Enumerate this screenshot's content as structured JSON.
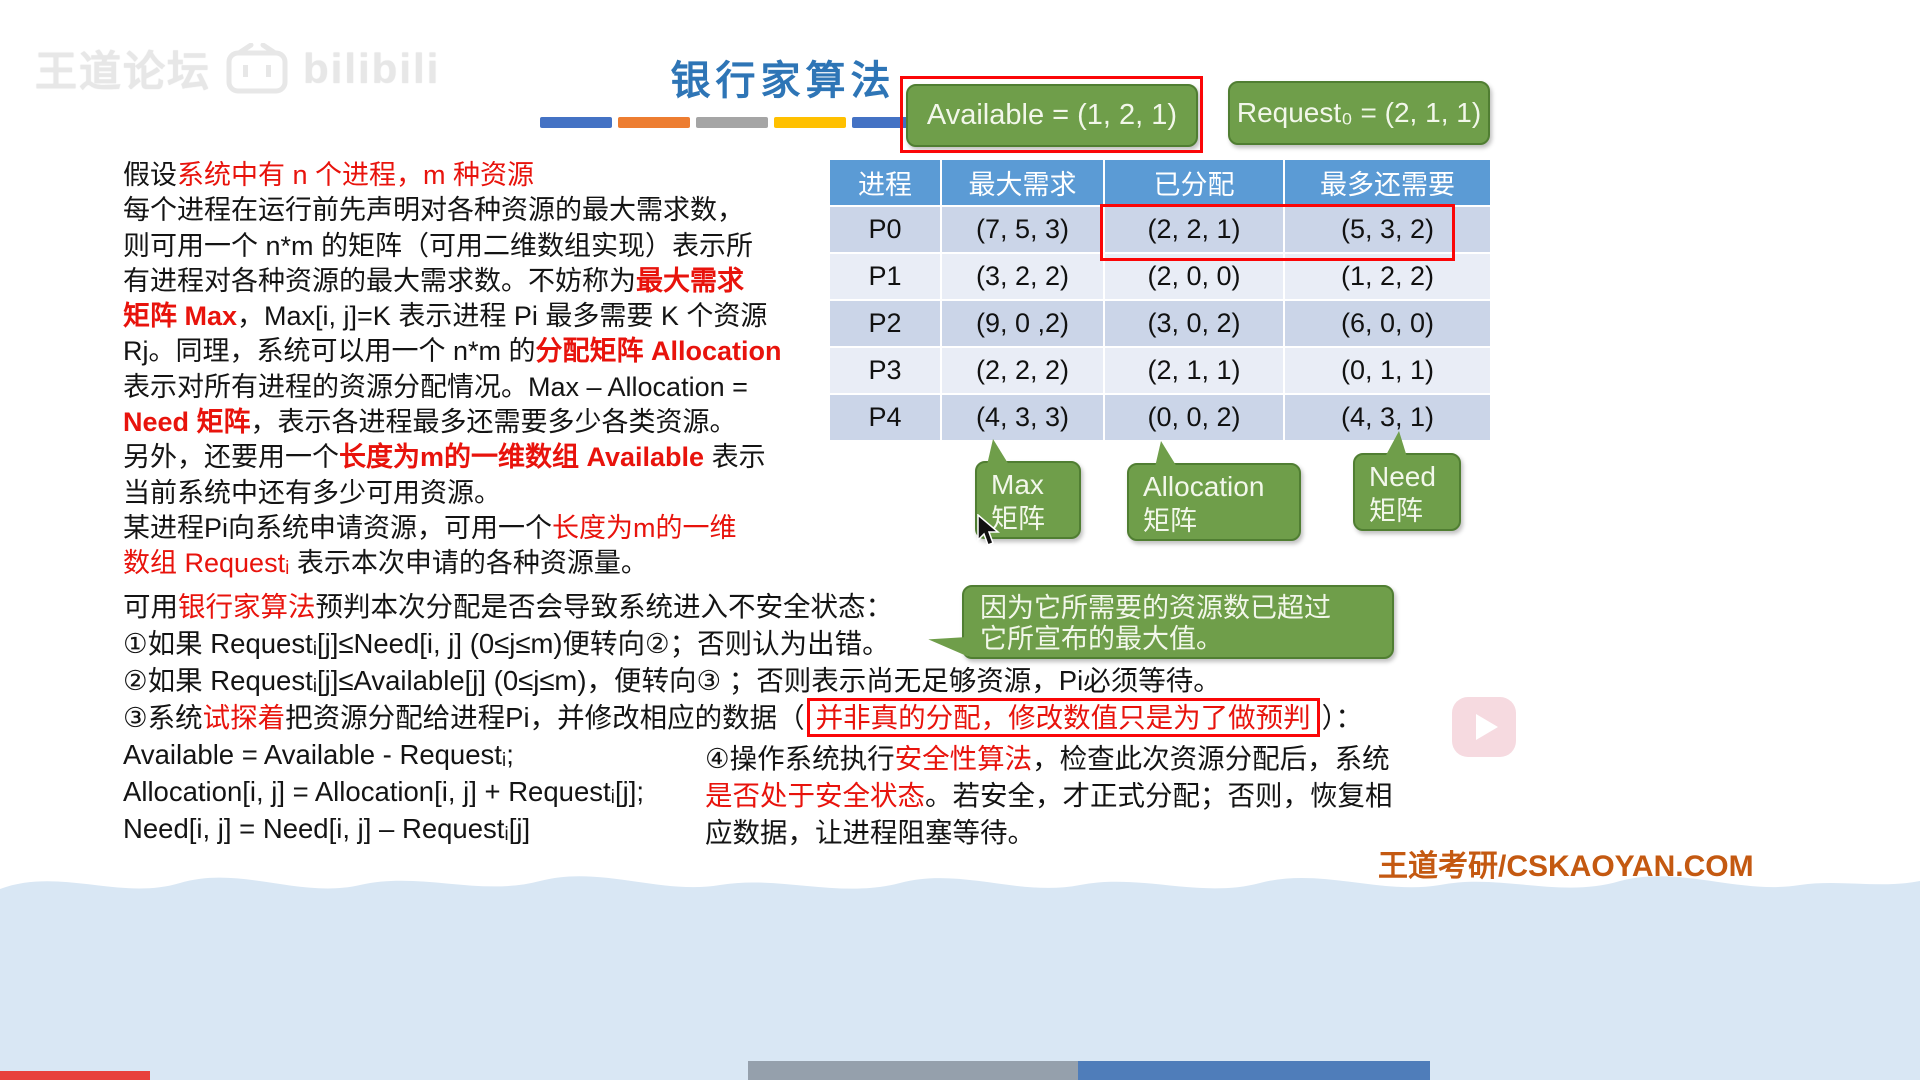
{
  "watermark": {
    "site": "王道论坛",
    "logo": "bilibili"
  },
  "header": {
    "title": "银行家算法"
  },
  "badges": {
    "available": "Available = (1, 2, 1)",
    "request": "Request₀ = (2, 1, 1)"
  },
  "decor": {
    "divider_colors": [
      "#4472C4",
      "#ED7D31",
      "#A5A5A5",
      "#FFC000",
      "#4472C4"
    ]
  },
  "intro": {
    "lines": [
      [
        {
          "t": "假设",
          "s": "k"
        },
        {
          "t": "系统中有 n 个进程，m 种资源",
          "s": "r"
        }
      ],
      [
        {
          "t": "每个进程在运行前先声明对各种资源的最大需求数，",
          "s": "k"
        }
      ],
      [
        {
          "t": "则可用一个 n*m 的矩阵（可用二维数组实现）表示所",
          "s": "k"
        }
      ],
      [
        {
          "t": "有进程对各种资源的最大需求数。不妨称为",
          "s": "k"
        },
        {
          "t": "最大需求",
          "s": "rb"
        }
      ],
      [
        {
          "t": "矩阵 Max",
          "s": "rb"
        },
        {
          "t": "，Max[i, j]=K 表示进程 Pi 最多需要 K 个资源",
          "s": "k"
        }
      ],
      [
        {
          "t": "Rj。同理，系统可以用一个 n*m 的",
          "s": "k"
        },
        {
          "t": "分配矩阵 Allocation",
          "s": "rb"
        }
      ],
      [
        {
          "t": "表示对所有进程的资源分配情况。Max – Allocation =",
          "s": "k"
        }
      ],
      [
        {
          "t": "Need 矩阵",
          "s": "rb"
        },
        {
          "t": "，表示各进程最多还需要多少各类资源。",
          "s": "k"
        }
      ],
      [
        {
          "t": "另外，还要用一个",
          "s": "k"
        },
        {
          "t": "长度为m的一维数组 Available",
          "s": "rb"
        },
        {
          "t": " 表示",
          "s": "k"
        }
      ],
      [
        {
          "t": "当前系统中还有多少可用资源。",
          "s": "k"
        }
      ],
      [
        {
          "t": "某进程Pi向系统申请资源，可用一个",
          "s": "k"
        },
        {
          "t": "长度为m的一维",
          "s": "r"
        }
      ],
      [
        {
          "t": "数组 Requestᵢ",
          "s": "r"
        },
        {
          "t": " 表示本次申请的各种资源量。",
          "s": "k"
        }
      ]
    ]
  },
  "table": {
    "headers": [
      "进程",
      "最大需求",
      "已分配",
      "最多还需要"
    ],
    "rows": [
      {
        "process": "P0",
        "max": "(7, 5, 3)",
        "alloc": "(2, 2, 1)",
        "need": "(5, 3, 2)"
      },
      {
        "process": "P1",
        "max": "(3, 2, 2)",
        "alloc": "(2, 0, 0)",
        "need": "(1, 2, 2)"
      },
      {
        "process": "P2",
        "max": "(9, 0 ,2)",
        "alloc": "(3, 0, 2)",
        "need": "(6, 0, 0)"
      },
      {
        "process": "P3",
        "max": "(2, 2, 2)",
        "alloc": "(2, 1, 1)",
        "need": "(0, 1, 1)"
      },
      {
        "process": "P4",
        "max": "(4, 3, 3)",
        "alloc": "(0, 0, 2)",
        "need": "(4, 3, 1)"
      }
    ]
  },
  "callouts": {
    "max": {
      "line1": "Max",
      "line2": "矩阵"
    },
    "allocation": {
      "line1": "Allocation",
      "line2": "矩阵"
    },
    "need": {
      "line1": "Need",
      "line2": "矩阵"
    },
    "note": {
      "line1": "因为它所需要的资源数已超过",
      "line2": "它所宣布的最大值。"
    }
  },
  "algorithm": {
    "lines": [
      [
        {
          "t": "可用",
          "s": "k"
        },
        {
          "t": "银行家算法",
          "s": "r"
        },
        {
          "t": "预判本次分配是否会导致系统进入不安全状态：",
          "s": "k"
        }
      ],
      [
        {
          "t": "①如果 Requestᵢ[j]≤Need[i, j] (0≤j≤m)便转向②；否则认为出错。",
          "s": "k"
        }
      ],
      [
        {
          "t": "②如果 Requestᵢ[j]≤Available[j] (0≤j≤m)，便转向③ ；否则表示尚无足够资源，Pi必须等待。",
          "s": "k"
        }
      ],
      [
        {
          "t": "③系统",
          "s": "k"
        },
        {
          "t": "试探着",
          "s": "r"
        },
        {
          "t": "把资源分配给进程Pi，并修改相应的数据（",
          "s": "k"
        },
        {
          "t": "并非真的分配，修改数值只是为了做预判",
          "s": "box"
        },
        {
          "t": "）：",
          "s": "k"
        }
      ],
      [
        {
          "t": "Available = Available - Requestᵢ;",
          "s": "k"
        }
      ],
      [
        {
          "t": "Allocation[i, j] = Allocation[i, j] + Requestᵢ[j];",
          "s": "k"
        }
      ],
      [
        {
          "t": "Need[i, j] = Need[i, j] – Requestᵢ[j]",
          "s": "k"
        }
      ]
    ]
  },
  "step4": {
    "lines": [
      [
        {
          "t": "④操作系统执行",
          "s": "k"
        },
        {
          "t": "安全性算法",
          "s": "r"
        },
        {
          "t": "，检查此次资源分配后，系统",
          "s": "k"
        }
      ],
      [
        {
          "t": "是否处于安全状态",
          "s": "r"
        },
        {
          "t": "。若安全，才正式分配；否则，恢复相",
          "s": "k"
        }
      ],
      [
        {
          "t": "应数据，让进程阻塞等待。",
          "s": "k"
        }
      ]
    ]
  },
  "footer": {
    "brand": "王道考研/CSKAOYAN.COM"
  },
  "colors": {
    "title_blue": "#2E75B6",
    "table_header_blue": "#5B9BD5",
    "table_row_dark": "#CBD5E8",
    "table_row_light": "#E9EDF6",
    "callout_green": "#6F9E4A",
    "accent_red": "#E8130C",
    "highlight_box_red": "#FB0607",
    "brand_orange": "#C45911"
  }
}
